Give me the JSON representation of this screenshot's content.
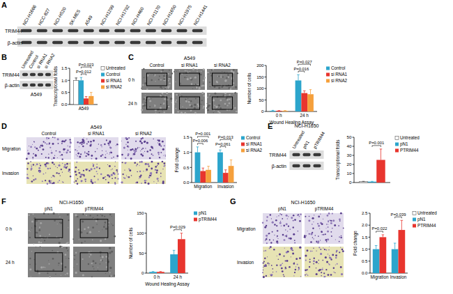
{
  "blots": [
    {
      "panel": "A",
      "lanes": [
        "NCI-H1666",
        "HCC-827",
        "NCI-H520",
        "SK-MES",
        "A549",
        "NCI-H1299",
        "NCI-H1792",
        "NCI-H460",
        "NCI-H1170",
        "NCI-H1650",
        "NCI-H1975",
        "NCI-H1441"
      ],
      "rows": [
        "TRIM44",
        "β-actin"
      ]
    },
    {
      "panel": "B",
      "lanes": [
        "Untreated",
        "Control",
        "si RNA1",
        "si RNA2"
      ],
      "rows": [
        "TRIM44",
        "β-actin"
      ],
      "cell_line": "A549"
    },
    {
      "panel": "E",
      "lanes": [
        "Untreated",
        "pN1",
        "pTRIM44"
      ],
      "rows": [
        "TRIM44",
        "β-actin"
      ],
      "cell_line": "NCI-H1650"
    }
  ],
  "image_grids": [
    {
      "panel": "C",
      "cell_line": "A549",
      "columns": [
        "Control",
        "si RNA1",
        "si RNA2"
      ],
      "rows": [
        "0 h",
        "24 h"
      ]
    },
    {
      "panel": "D",
      "cell_line": "A549",
      "columns": [
        "Control",
        "si RNA1",
        "si RNA2"
      ],
      "rows": [
        "Migration",
        "Invasion"
      ]
    },
    {
      "panel": "F",
      "cell_line": "NCI-H1650",
      "columns": [
        "pN1",
        "pTRIM44"
      ],
      "rows": [
        "0 h",
        "24 h"
      ]
    },
    {
      "panel": "G",
      "cell_line": "NCI-H1650",
      "columns": [
        "pN1",
        "pTRIM44"
      ],
      "rows": [
        "Migration",
        "Invasion"
      ]
    }
  ],
  "chart_data": [
    {
      "panel": "B",
      "type": "bar",
      "y_label": "Transcriptional folds",
      "categories": [
        "A549"
      ],
      "ylim": [
        0,
        1.5
      ],
      "yticks": [
        {
          "value": 0,
          "label": "0.0"
        },
        0.5,
        {
          "value": 1,
          "label": "1.0"
        },
        1.5
      ],
      "legend": "right",
      "series": [
        {
          "name": "Untreated",
          "color": "#ffffff",
          "values": [
            1.0
          ],
          "errors": [
            0.1
          ]
        },
        {
          "name": "Control",
          "color": "#2ca5cc",
          "values": [
            1.0
          ],
          "errors": [
            0.12
          ]
        },
        {
          "name": "si RNA1",
          "color": "#e8352e",
          "values": [
            0.25
          ],
          "errors": [
            0.08
          ]
        },
        {
          "name": "si RNA2",
          "color": "#f5a03c",
          "values": [
            0.35
          ],
          "errors": [
            0.15
          ]
        }
      ],
      "annotations": [
        "P=0.023",
        "P=0.012"
      ]
    },
    {
      "panel": "C",
      "type": "bar",
      "y_label": "Number of cells",
      "x_label": "Wound Healing Assay",
      "categories": [
        "0 h",
        "24 h"
      ],
      "ylim": [
        0,
        200
      ],
      "yticks": [
        0,
        50,
        100,
        150,
        200
      ],
      "legend": "right",
      "series": [
        {
          "name": "Control",
          "color": "#2ca5cc",
          "values": [
            3,
            135
          ],
          "errors": [
            2,
            25
          ]
        },
        {
          "name": "si RNA1",
          "color": "#e8352e",
          "values": [
            3,
            80
          ],
          "errors": [
            1,
            10
          ]
        },
        {
          "name": "si RNA2",
          "color": "#f5a03c",
          "values": [
            3,
            75
          ],
          "errors": [
            1,
            20
          ]
        }
      ],
      "annotations": [
        "P=0.027",
        "P=0.016"
      ]
    },
    {
      "panel": "D",
      "type": "bar",
      "y_label": "Fold change",
      "categories": [
        "Migration",
        "Invasion"
      ],
      "ylim": [
        0,
        1.5
      ],
      "yticks": [
        {
          "value": 0,
          "label": "0.0"
        },
        0.5,
        {
          "value": 1,
          "label": "1.0"
        },
        1.5
      ],
      "legend": "right",
      "series": [
        {
          "name": "Control",
          "color": "#2ca5cc",
          "values": [
            1.0,
            1.0
          ],
          "errors": [
            0.18,
            0.08
          ]
        },
        {
          "name": "si RNA1",
          "color": "#e8352e",
          "values": [
            0.38,
            0.32
          ],
          "errors": [
            0.1,
            0.1
          ]
        },
        {
          "name": "si RNA2",
          "color": "#f5a03c",
          "values": [
            0.42,
            0.55
          ],
          "errors": [
            0.12,
            0.2
          ]
        }
      ],
      "annotations": [
        "P=0.001",
        "P=0.006",
        "P=0.013",
        "P=0.061"
      ]
    },
    {
      "panel": "E",
      "type": "bar",
      "y_label": "Transcriptional folds",
      "categories": [
        null
      ],
      "ylim": [
        0,
        50
      ],
      "yticks": [
        0,
        10,
        20,
        30,
        40,
        50
      ],
      "legend": "right",
      "series": [
        {
          "name": "Untreated",
          "color": "#ffffff",
          "values": [
            1
          ],
          "errors": [
            0.3
          ]
        },
        {
          "name": "pN1",
          "color": "#2ca5cc",
          "values": [
            1
          ],
          "errors": [
            0.3
          ]
        },
        {
          "name": "PTRIM44",
          "color": "#e8352e",
          "values": [
            25
          ],
          "errors": [
            12
          ]
        }
      ],
      "annotations": [
        "P=0.001"
      ]
    },
    {
      "panel": "F",
      "type": "bar",
      "y_label": "Number of cells",
      "x_label": "Wound Healing Assay",
      "categories": [
        "0 h",
        "24 h"
      ],
      "ylim": [
        0,
        150
      ],
      "yticks": [
        0,
        50,
        100,
        150
      ],
      "legend": "right",
      "series": [
        {
          "name": "pN1",
          "color": "#2ca5cc",
          "values": [
            3,
            47
          ],
          "errors": [
            1,
            10
          ]
        },
        {
          "name": "pTRIM44",
          "color": "#e8352e",
          "values": [
            3,
            85
          ],
          "errors": [
            1,
            15
          ]
        }
      ],
      "annotations": [
        "P=0.029"
      ]
    },
    {
      "panel": "G",
      "type": "bar",
      "y_label": "Fold change",
      "categories": [
        "Migration",
        "Invasion"
      ],
      "ylim": [
        0,
        2.5
      ],
      "yticks": [
        {
          "value": 0,
          "label": "0.0"
        },
        0.5,
        {
          "value": 1,
          "label": "1.0"
        },
        1.5,
        {
          "value": 2,
          "label": "2.0"
        },
        2.5
      ],
      "legend": "right",
      "series": [
        {
          "name": "Untreated",
          "color": "#ffffff",
          "values": [
            null,
            null
          ],
          "errors": [
            null,
            null
          ]
        },
        {
          "name": "pN1",
          "color": "#2ca5cc",
          "values": [
            1.0,
            1.0
          ],
          "errors": [
            0.15,
            0.25
          ]
        },
        {
          "name": "PTRIM44",
          "color": "#e8352e",
          "values": [
            1.5,
            1.8
          ],
          "errors": [
            0.1,
            0.4
          ]
        }
      ],
      "annotations": [
        "P=0.022",
        "P=0.039"
      ]
    }
  ]
}
